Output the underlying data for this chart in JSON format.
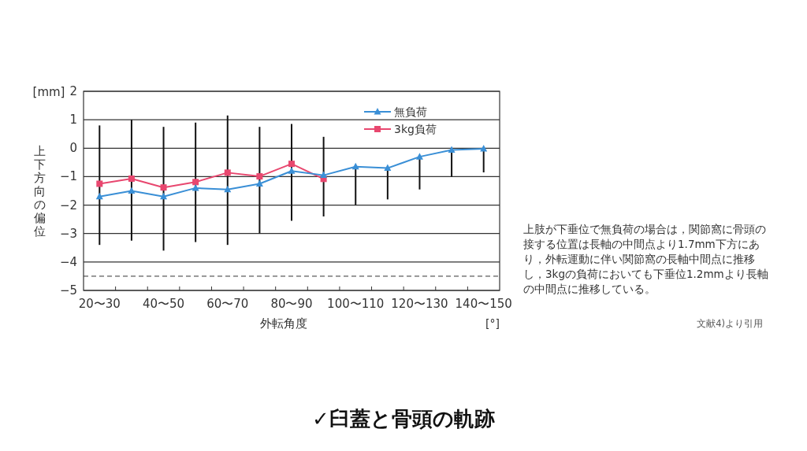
{
  "chart_data": {
    "type": "line",
    "title": "✓臼蓋と骨頭の軌跡",
    "xlabel": "外転角度",
    "ylabel": "上下方向の偏位",
    "categories": [
      "20〜30",
      null,
      "40〜50",
      null,
      "60〜70",
      null,
      "80〜90",
      null,
      "100〜110",
      null,
      "120〜130",
      null,
      "140〜150"
    ],
    "series": [
      {
        "name": "無負荷",
        "color": "#3a8fd6",
        "marker": "triangle",
        "values": [
          -1.7,
          -1.5,
          -1.7,
          -1.4,
          -1.45,
          -1.25,
          -0.8,
          -0.95,
          -0.65,
          -0.7,
          -0.3,
          -0.06,
          -0.02
        ],
        "errors": [
          [
            -3.4,
            0.8
          ],
          [
            -3.25,
            1.0
          ],
          [
            -3.6,
            0.75
          ],
          [
            -3.3,
            0.9
          ],
          [
            -3.4,
            1.15
          ],
          [
            -3.0,
            0.75
          ],
          [
            -2.55,
            0.85
          ],
          [
            -2.4,
            0.4
          ],
          [
            -2.0,
            -0.65
          ],
          [
            -1.8,
            -0.7
          ],
          [
            -1.45,
            -0.3
          ],
          [
            -1.0,
            -0.06
          ],
          [
            -0.85,
            -0.02
          ]
        ]
      },
      {
        "name": "3kg負荷",
        "color": "#e8476f",
        "marker": "square",
        "values": [
          -1.25,
          -1.07,
          -1.38,
          -1.19,
          -0.86,
          -0.99,
          -0.55,
          -1.08,
          null,
          null,
          null,
          null,
          null
        ]
      }
    ],
    "ylim": [
      -5,
      2
    ],
    "yticks": [
      -5,
      -4,
      -3,
      -2,
      -1,
      0,
      1,
      2
    ],
    "grid": "y",
    "legend": "top",
    "ref_lines": [
      {
        "axis": "y",
        "value": -4.5,
        "line_style": "dashed",
        "color": "#333333"
      }
    ],
    "annotations": [
      "[mm]",
      "[°]",
      "上肢が下垂位で無負荷の場合は，関節窩に骨頭の接する位置は長軸の中間点より1.7mm下方にあり，外転運動に伴い関節窩の長軸中間点に推移し，3kgの負荷においても下垂位1.2mmより長軸の中間点に推移している。",
      "文献4)より引用"
    ]
  }
}
